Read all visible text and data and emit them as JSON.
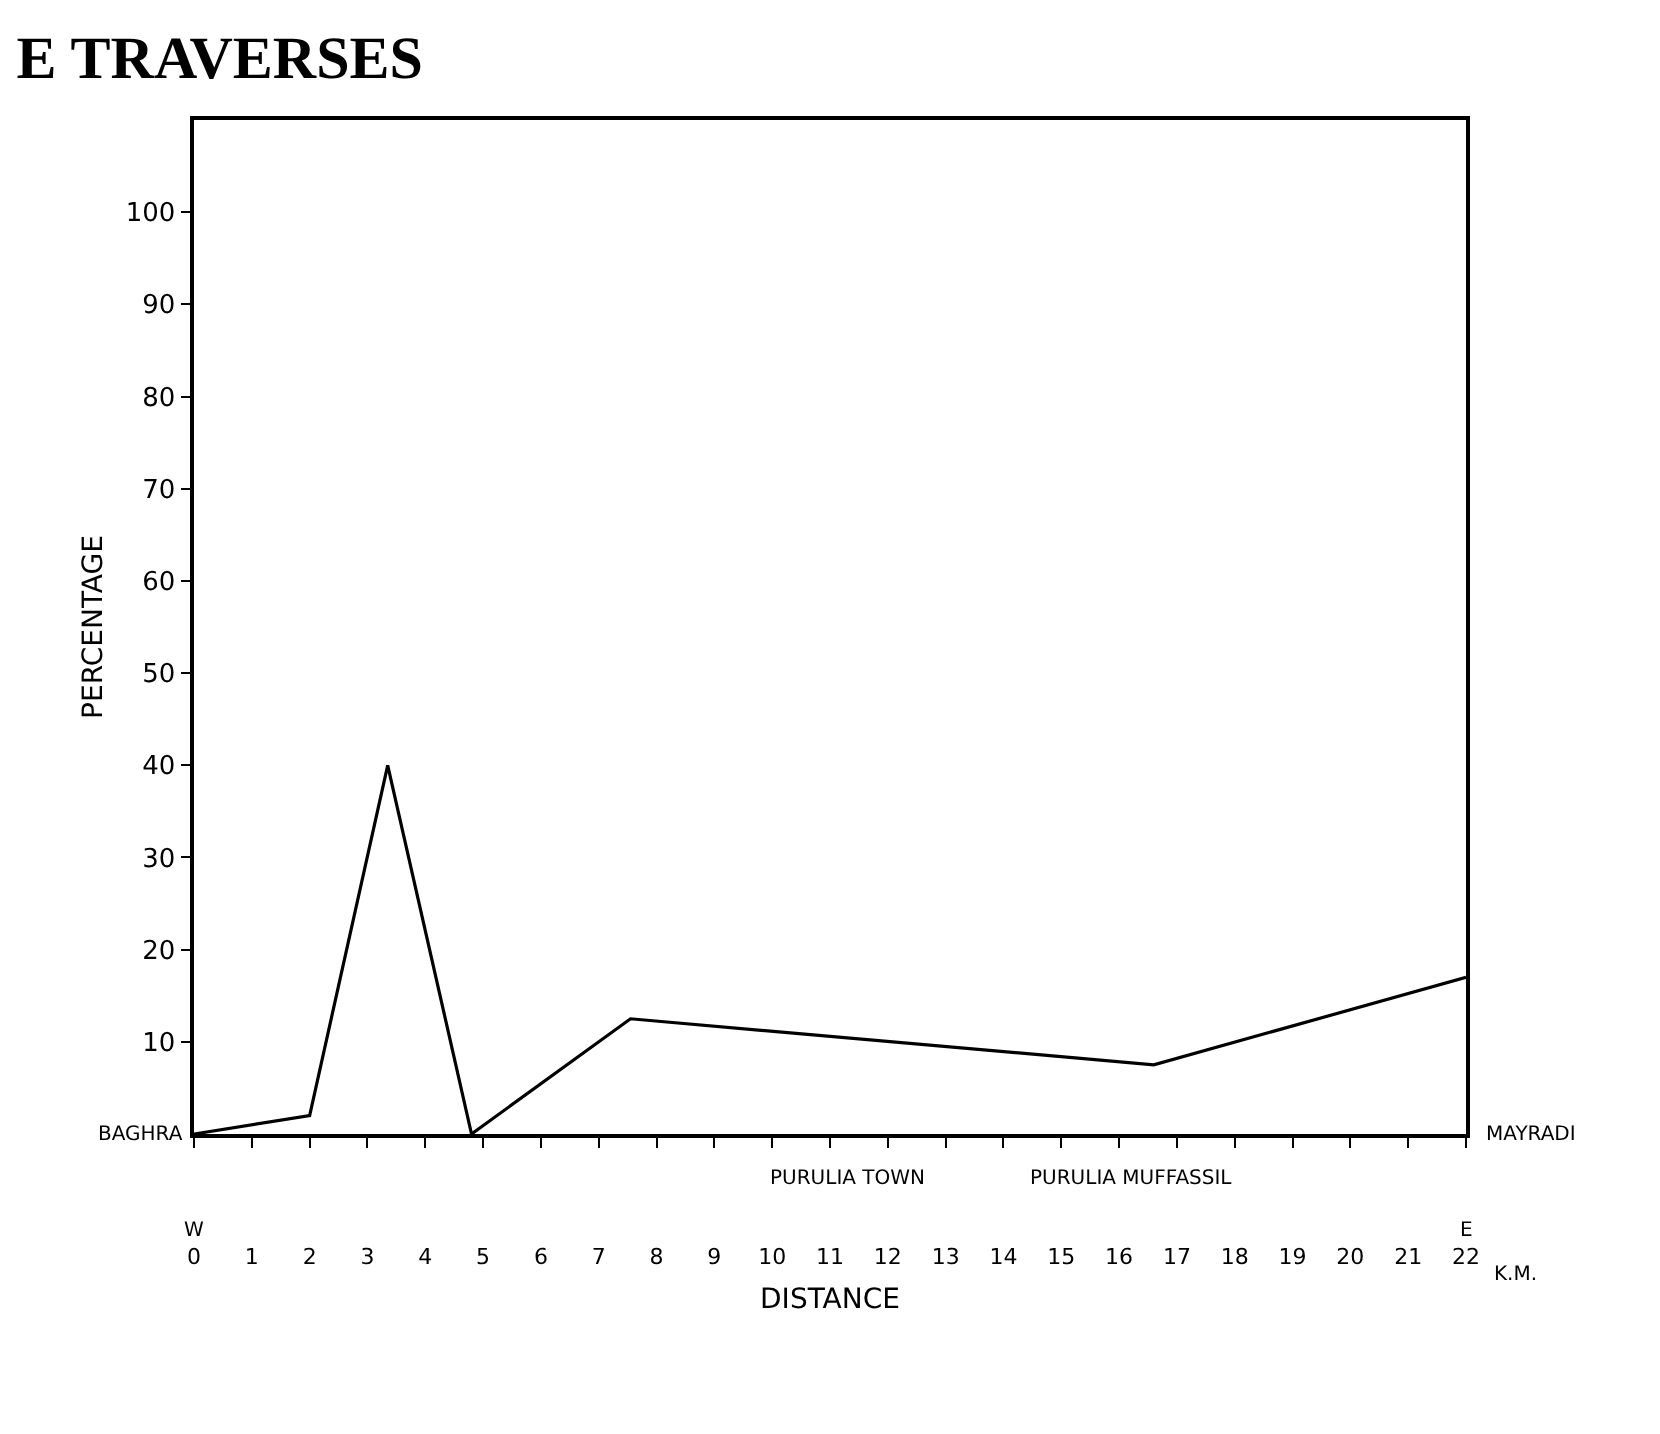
{
  "chart_data": {
    "type": "line",
    "title": "E TRAVERSES",
    "xlabel": "DISTANCE",
    "ylabel": "PERCENTAGE",
    "x": [
      0,
      2,
      3.35,
      4.8,
      7.55,
      16.6,
      22
    ],
    "series": [
      {
        "color": "#000000",
        "values": [
          0,
          2,
          40,
          0,
          12.5,
          7.5,
          17
        ]
      }
    ],
    "xlim": [
      0,
      22
    ],
    "xticks": [
      0,
      1,
      2,
      3,
      4,
      5,
      6,
      7,
      8,
      9,
      10,
      11,
      12,
      13,
      14,
      15,
      16,
      17,
      18,
      19,
      20,
      21,
      22
    ],
    "ylim": [
      0,
      110
    ],
    "yticks": [
      10,
      20,
      30,
      40,
      50,
      60,
      70,
      80,
      90,
      100
    ],
    "annotations": [
      "BAGHRA",
      "MAYRADI",
      "PURULIA TOWN",
      "PURULIA MUFFASSIL",
      "W",
      "E",
      "K.M."
    ],
    "marker": "none",
    "line_style": "solid"
  }
}
